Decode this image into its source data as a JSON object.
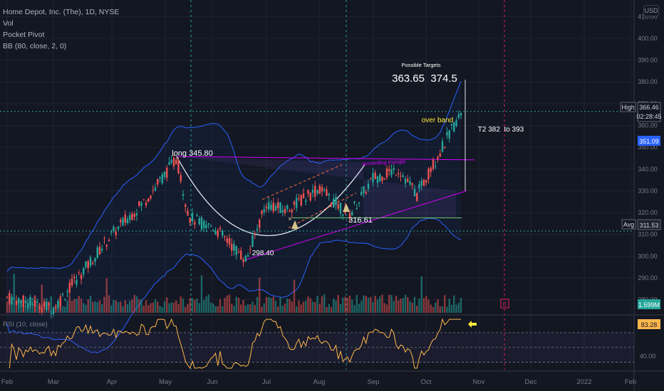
{
  "legend": {
    "title": "Home Depot, Inc. (The), 1D, NYSE",
    "vol": "Vol",
    "indicator": "Pocket Pivot",
    "bb": "BB (80, close, 2, 0)"
  },
  "currency": "USD",
  "rsi_label": "RSI (10, close)",
  "price_labels": {
    "high_tag": "High",
    "high": "366.46",
    "countdown": "02:28:45",
    "bb_upper": "351.09",
    "avg_tag": "Avg",
    "avg": "311.53",
    "volume": "1.599M",
    "rsi": "83.28",
    "rsi_level": "40.00"
  },
  "annotations": {
    "targets_title": "Possible Targets",
    "targets": "363.65  374.5",
    "over_band": "over band",
    "t2": "T2 382  to 393",
    "long": "long 345.80",
    "ascending": "ascending triangle",
    "low": "298.40",
    "support": "316.61"
  },
  "colors": {
    "up": "#26a69a",
    "down": "#ef5350",
    "bb": "#2962ff",
    "rsi": "#ffb74d",
    "channel": "#d500f9",
    "background": "#131722"
  },
  "chart_data": {
    "type": "candlestick",
    "ylim": [
      274,
      415
    ],
    "yticks": [
      280,
      290,
      300,
      310,
      320,
      330,
      340,
      350,
      360,
      370,
      380,
      390,
      400,
      410
    ],
    "xticks": [
      "Feb",
      "Mar",
      "Apr",
      "May",
      "Jun",
      "Jul",
      "Aug",
      "Sep",
      "Oct",
      "Nov",
      "Dec",
      "2022",
      "Feb"
    ],
    "price_path": [
      {
        "x": "Feb",
        "y": 281
      },
      {
        "x": "Mar",
        "y": 276
      },
      {
        "x": "Apr",
        "y": 310
      },
      {
        "x": "late Apr",
        "y": 326
      },
      {
        "x": "May",
        "y": 345
      },
      {
        "x": "mid May",
        "y": 318
      },
      {
        "x": "late May",
        "y": 314
      },
      {
        "x": "Jun",
        "y": 314
      },
      {
        "x": "late Jun",
        "y": 298.4
      },
      {
        "x": "Jul",
        "y": 324
      },
      {
        "x": "mid Jul",
        "y": 321
      },
      {
        "x": "Aug",
        "y": 331
      },
      {
        "x": "late Aug",
        "y": 319
      },
      {
        "x": "Sep",
        "y": 336
      },
      {
        "x": "mid Sep",
        "y": 340
      },
      {
        "x": "late Sep",
        "y": 328
      },
      {
        "x": "Oct",
        "y": 336
      },
      {
        "x": "mid Oct",
        "y": 366.46
      }
    ],
    "rsi_level": 40
  }
}
